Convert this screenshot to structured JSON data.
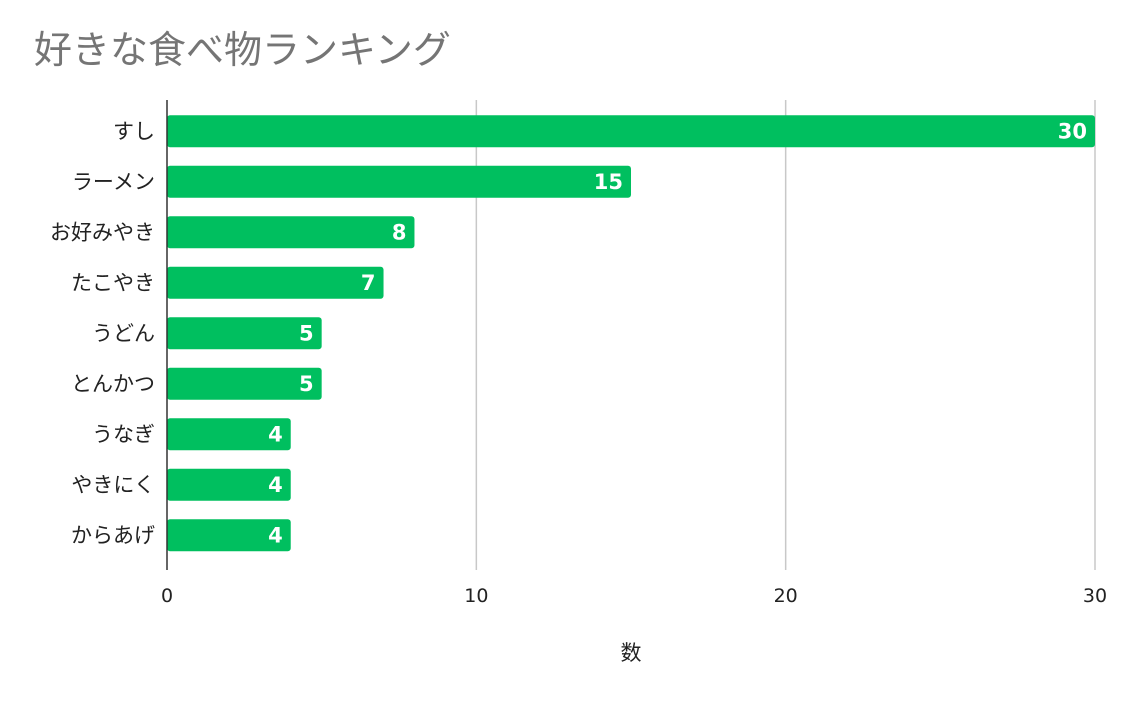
{
  "chart_data": {
    "type": "bar",
    "orientation": "horizontal",
    "title": "好きな食べ物ランキング",
    "xlabel": "数",
    "ylabel": "",
    "categories": [
      "すし",
      "ラーメン",
      "お好みやき",
      "たこやき",
      "うどん",
      "とんかつ",
      "うなぎ",
      "やきにく",
      "からあげ"
    ],
    "values": [
      30,
      15,
      8,
      7,
      5,
      5,
      4,
      4,
      4
    ],
    "xlim": [
      0,
      30
    ],
    "xticks": [
      "0",
      "10",
      "20",
      "30"
    ],
    "grid": true,
    "legend": "none",
    "bar_color": "#00bf5f"
  }
}
